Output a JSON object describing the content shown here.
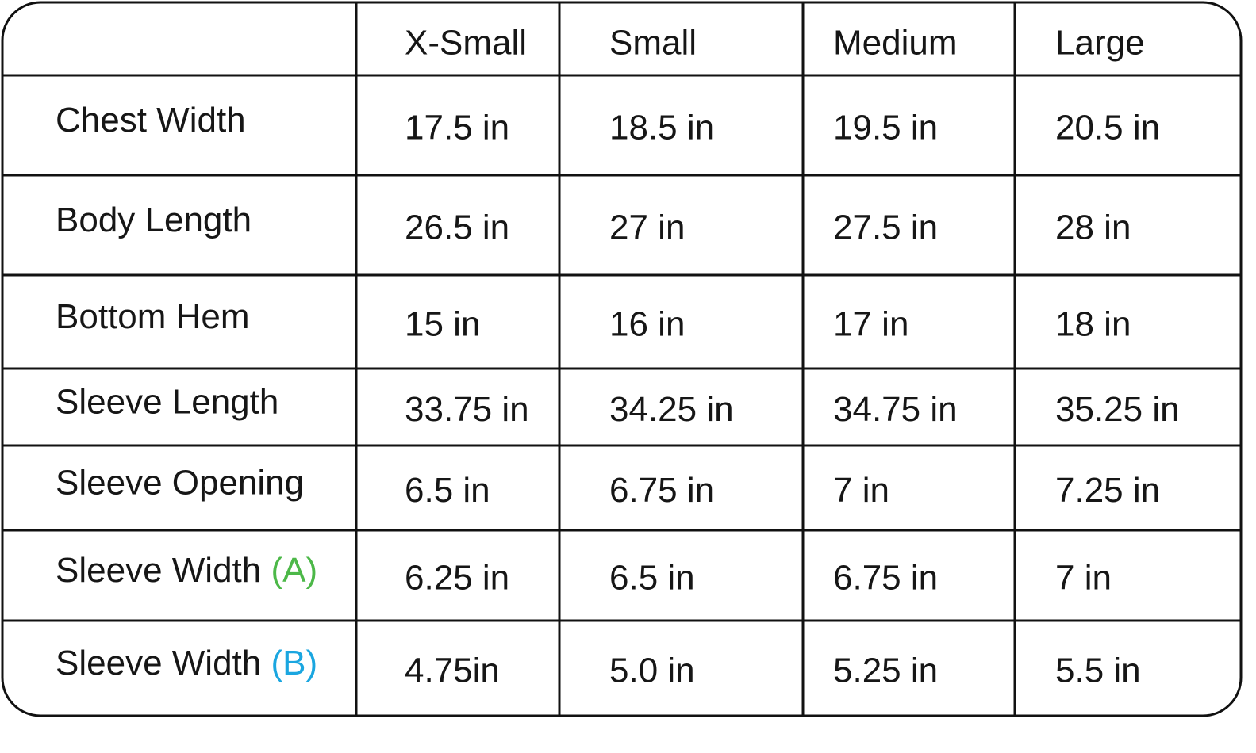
{
  "table": {
    "columns": [
      "X-Small",
      "Small",
      "Medium",
      "Large"
    ],
    "rows": [
      {
        "label": "Chest Width",
        "cells": [
          "17.5 in",
          "18.5 in",
          "19.5 in",
          "20.5 in"
        ]
      },
      {
        "label": "Body Length",
        "cells": [
          "26.5 in",
          "27 in",
          "27.5 in",
          "28 in"
        ]
      },
      {
        "label": "Bottom Hem",
        "cells": [
          "15 in",
          "16 in",
          "17 in",
          "18 in"
        ]
      },
      {
        "label": "Sleeve Length",
        "cells": [
          "33.75 in",
          "34.25 in",
          "34.75 in",
          "35.25 in"
        ]
      },
      {
        "label": "Sleeve Opening",
        "cells": [
          "6.5 in",
          "6.75 in",
          "7 in",
          "7.25 in"
        ]
      },
      {
        "label": "Sleeve Width",
        "tag": "(A)",
        "tag_color": "#4cb848",
        "cells": [
          "6.25 in",
          "6.5 in",
          "6.75 in",
          "7 in"
        ]
      },
      {
        "label": "Sleeve Width",
        "tag": "(B)",
        "tag_color": "#1aa6e0",
        "cells": [
          "4.75in",
          "5.0 in",
          "5.25 in",
          "5.5 in"
        ]
      }
    ]
  }
}
